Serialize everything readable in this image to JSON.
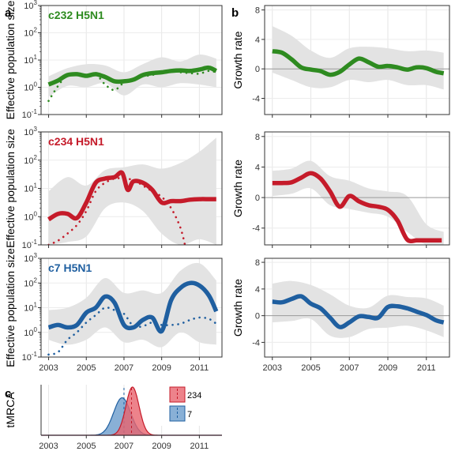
{
  "figure": {
    "panel_labels": [
      "a",
      "b",
      "c"
    ]
  },
  "chart_data": [
    {
      "panel": "a",
      "type": "line",
      "title": "c232 H5N1",
      "ylabel": "Effective population size",
      "yscale": "log",
      "ylim_log10": [
        -1,
        3
      ],
      "yticks_log10": [
        -1,
        0,
        1,
        2,
        3
      ],
      "xlim": [
        2002.6,
        2012.2
      ],
      "xticks": [
        2003,
        2005,
        2007,
        2009,
        2011
      ],
      "show_xtick_labels": false,
      "color": "#2e8b20",
      "series": [
        {
          "role": "median",
          "style": "solid",
          "x": [
            2003.0,
            2003.5,
            2004.0,
            2004.5,
            2005.0,
            2005.5,
            2006.0,
            2006.5,
            2007.0,
            2007.5,
            2008.0,
            2008.5,
            2009.0,
            2009.5,
            2010.0,
            2010.5,
            2011.0,
            2011.5,
            2011.9
          ],
          "y_log10": [
            0.1,
            0.25,
            0.45,
            0.48,
            0.42,
            0.48,
            0.38,
            0.22,
            0.22,
            0.28,
            0.45,
            0.52,
            0.55,
            0.6,
            0.62,
            0.6,
            0.65,
            0.72,
            0.6
          ]
        },
        {
          "role": "dotted",
          "style": "dotted",
          "x": [
            2003.0,
            2003.5,
            2004.0,
            2004.5,
            2005.0,
            2005.5,
            2006.0,
            2006.5,
            2007.0,
            2007.5,
            2008.0,
            2008.5,
            2009.0,
            2009.5,
            2010.0,
            2010.5,
            2011.0,
            2011.5,
            2011.9
          ],
          "y_log10": [
            -0.5,
            0.05,
            0.45,
            0.5,
            0.45,
            0.48,
            0.1,
            -0.1,
            0.18,
            0.3,
            0.4,
            0.45,
            0.55,
            0.6,
            0.55,
            0.52,
            0.5,
            0.6,
            0.55
          ]
        },
        {
          "role": "ci",
          "style": "band",
          "x": [
            2003.0,
            2004.0,
            2005.0,
            2006.0,
            2007.0,
            2008.0,
            2009.0,
            2010.0,
            2011.0,
            2011.9
          ],
          "lo_log10": [
            -0.35,
            0.05,
            0.0,
            0.15,
            -0.3,
            0.1,
            0.0,
            0.15,
            0.1,
            0.0
          ],
          "hi_log10": [
            0.4,
            0.7,
            0.85,
            0.8,
            0.55,
            0.85,
            1.1,
            0.95,
            1.2,
            1.05
          ]
        }
      ]
    },
    {
      "panel": "a",
      "type": "line",
      "title": "c234 H5N1",
      "ylabel": "Effective population size",
      "yscale": "log",
      "ylim_log10": [
        -1,
        3
      ],
      "yticks_log10": [
        -1,
        0,
        1,
        2,
        3
      ],
      "xlim": [
        2002.6,
        2012.2
      ],
      "xticks": [
        2003,
        2005,
        2007,
        2009,
        2011
      ],
      "show_xtick_labels": false,
      "color": "#c51b2a",
      "series": [
        {
          "role": "median",
          "style": "solid",
          "x": [
            2003.0,
            2003.5,
            2004.0,
            2004.5,
            2005.0,
            2005.5,
            2006.0,
            2006.5,
            2006.9,
            2007.2,
            2007.5,
            2008.0,
            2008.5,
            2009.0,
            2009.5,
            2010.0,
            2010.5,
            2011.0,
            2011.5,
            2011.9
          ],
          "y_log10": [
            -0.1,
            0.1,
            0.1,
            -0.05,
            0.5,
            1.2,
            1.35,
            1.4,
            1.55,
            0.95,
            1.25,
            1.2,
            0.95,
            0.5,
            0.55,
            0.55,
            0.6,
            0.62,
            0.62,
            0.62
          ]
        },
        {
          "role": "dotted",
          "style": "dotted",
          "x": [
            2003.0,
            2003.5,
            2004.0,
            2004.5,
            2005.0,
            2005.5,
            2006.0,
            2006.5,
            2006.9,
            2007.5,
            2008.0,
            2008.5,
            2009.0,
            2009.5,
            2010.0,
            2010.3
          ],
          "y_log10": [
            -1.0,
            -0.85,
            -0.6,
            -0.3,
            0.2,
            0.9,
            1.2,
            1.35,
            1.35,
            1.3,
            1.1,
            0.9,
            0.7,
            0.3,
            -0.4,
            -1.2
          ]
        },
        {
          "role": "ci",
          "style": "band",
          "x": [
            2003.0,
            2004.0,
            2005.0,
            2006.0,
            2007.0,
            2008.0,
            2009.0,
            2010.0,
            2011.0,
            2011.9
          ],
          "lo_log10": [
            -1.0,
            -0.9,
            -0.7,
            0.3,
            0.5,
            0.2,
            -0.6,
            -1.0,
            -0.8,
            -1.0
          ],
          "hi_log10": [
            0.9,
            1.4,
            1.1,
            1.65,
            1.75,
            1.85,
            1.7,
            1.9,
            2.3,
            2.8
          ]
        }
      ]
    },
    {
      "panel": "a",
      "type": "line",
      "title": "c7 H5N1",
      "ylabel": "Effective population size",
      "yscale": "log",
      "ylim_log10": [
        -1,
        3
      ],
      "yticks_log10": [
        -1,
        0,
        1,
        2,
        3
      ],
      "xlim": [
        2002.6,
        2012.2
      ],
      "xticks": [
        2003,
        2005,
        2007,
        2009,
        2011
      ],
      "show_xtick_labels": true,
      "color": "#1f5fa0",
      "series": [
        {
          "role": "median",
          "style": "solid",
          "x": [
            2003.0,
            2003.5,
            2004.0,
            2004.5,
            2005.0,
            2005.5,
            2006.0,
            2006.5,
            2007.0,
            2007.5,
            2008.0,
            2008.5,
            2009.0,
            2009.5,
            2010.0,
            2010.5,
            2011.0,
            2011.5,
            2011.9
          ],
          "y_log10": [
            0.2,
            0.3,
            0.2,
            0.3,
            0.8,
            1.0,
            1.45,
            1.2,
            0.3,
            0.2,
            0.5,
            0.6,
            0.05,
            1.3,
            1.8,
            2.0,
            1.9,
            1.5,
            0.85
          ]
        },
        {
          "role": "dotted",
          "style": "dotted",
          "x": [
            2003.0,
            2003.5,
            2004.0,
            2004.5,
            2005.0,
            2005.5,
            2006.0,
            2006.5,
            2007.0,
            2007.5,
            2008.0,
            2008.5,
            2009.0,
            2009.5,
            2010.0,
            2010.5,
            2011.0,
            2011.5,
            2011.9
          ],
          "y_log10": [
            -0.9,
            -0.8,
            -0.3,
            0.0,
            0.4,
            0.7,
            1.0,
            0.9,
            0.75,
            0.25,
            0.25,
            0.4,
            0.3,
            0.3,
            0.35,
            0.5,
            0.6,
            0.55,
            0.35
          ]
        },
        {
          "role": "ci",
          "style": "band",
          "x": [
            2003.0,
            2004.0,
            2005.0,
            2006.0,
            2007.0,
            2008.0,
            2009.0,
            2010.0,
            2011.0,
            2011.9
          ],
          "lo_log10": [
            -0.3,
            -0.5,
            -0.3,
            0.2,
            -0.4,
            -0.3,
            -0.6,
            0.0,
            -0.4,
            -0.5
          ],
          "hi_log10": [
            0.9,
            1.0,
            1.4,
            2.2,
            1.6,
            1.7,
            1.6,
            2.5,
            2.8,
            2.1
          ]
        }
      ]
    },
    {
      "panel": "b",
      "type": "line",
      "ylabel": "Growth rate",
      "ylim": [
        -6.2,
        8.6
      ],
      "yticks": [
        -4,
        0,
        4,
        8
      ],
      "yticks_labels": [
        "-4",
        "0",
        "4",
        "8"
      ],
      "xlim": [
        2002.6,
        2012.2
      ],
      "xticks": [
        2003,
        2005,
        2007,
        2009,
        2011
      ],
      "show_xtick_labels": false,
      "color": "#2e8b20",
      "series": [
        {
          "role": "median",
          "style": "solid",
          "x": [
            2003.0,
            2003.5,
            2004.0,
            2004.5,
            2005.0,
            2005.5,
            2006.0,
            2006.5,
            2007.0,
            2007.5,
            2008.0,
            2008.5,
            2009.0,
            2009.5,
            2010.0,
            2010.5,
            2011.0,
            2011.5,
            2011.9
          ],
          "y": [
            2.4,
            2.2,
            1.3,
            0.2,
            -0.1,
            -0.3,
            -0.8,
            -0.4,
            0.6,
            1.4,
            0.9,
            0.3,
            0.4,
            0.2,
            -0.1,
            0.2,
            0.1,
            -0.4,
            -0.6
          ]
        },
        {
          "role": "ci",
          "style": "band",
          "x": [
            2003.0,
            2004.0,
            2005.0,
            2006.0,
            2007.0,
            2008.0,
            2009.0,
            2010.0,
            2011.0,
            2011.9
          ],
          "lo": [
            -0.5,
            -1.5,
            -2.5,
            -2.5,
            -1.5,
            -1.8,
            -1.5,
            -2.2,
            -2.2,
            -2.8
          ],
          "hi": [
            5.8,
            4.5,
            2.5,
            1.5,
            2.8,
            3.0,
            2.8,
            2.4,
            2.5,
            2.2
          ]
        }
      ]
    },
    {
      "panel": "b",
      "type": "line",
      "ylabel": "Growth rate",
      "ylim": [
        -6.2,
        8.6
      ],
      "yticks": [
        -4,
        0,
        4,
        8
      ],
      "yticks_labels": [
        "-4",
        "0",
        "4",
        "8"
      ],
      "xlim": [
        2002.6,
        2012.2
      ],
      "xticks": [
        2003,
        2005,
        2007,
        2009,
        2011
      ],
      "show_xtick_labels": false,
      "color": "#c51b2a",
      "series": [
        {
          "role": "median",
          "style": "solid",
          "x": [
            2003.0,
            2003.5,
            2004.0,
            2004.5,
            2005.0,
            2005.5,
            2006.0,
            2006.5,
            2007.0,
            2007.5,
            2008.0,
            2008.5,
            2009.0,
            2009.5,
            2010.0,
            2010.5,
            2010.7,
            2011.0,
            2011.5,
            2011.8
          ],
          "y": [
            1.9,
            1.9,
            2.0,
            2.6,
            3.2,
            2.5,
            0.8,
            -1.2,
            0.2,
            -0.5,
            -1.0,
            -1.2,
            -1.6,
            -3.0,
            -5.5,
            -5.6,
            -5.6,
            -5.6,
            -5.6,
            -5.6
          ]
        },
        {
          "role": "ci",
          "style": "band",
          "x": [
            2003.0,
            2004.0,
            2005.0,
            2006.0,
            2007.0,
            2008.0,
            2009.0,
            2010.0,
            2011.0,
            2011.9
          ],
          "lo": [
            0.2,
            0.5,
            1.2,
            -1.0,
            -1.5,
            -2.0,
            -2.5,
            -4.5,
            -6.2,
            -6.2
          ],
          "hi": [
            3.5,
            3.8,
            4.8,
            2.8,
            2.2,
            1.2,
            0.8,
            0.2,
            -3.5,
            -4.5
          ]
        }
      ]
    },
    {
      "panel": "b",
      "type": "line",
      "ylabel": "Growth rate",
      "ylim": [
        -6.2,
        8.6
      ],
      "yticks": [
        -4,
        0,
        4,
        8
      ],
      "yticks_labels": [
        "-4",
        "0",
        "4",
        "8"
      ],
      "xlim": [
        2002.6,
        2012.2
      ],
      "xticks": [
        2003,
        2005,
        2007,
        2009,
        2011
      ],
      "show_xtick_labels": true,
      "color": "#1f5fa0",
      "series": [
        {
          "role": "median",
          "style": "solid",
          "x": [
            2003.0,
            2003.5,
            2004.0,
            2004.5,
            2005.0,
            2005.5,
            2006.0,
            2006.5,
            2007.0,
            2007.5,
            2008.0,
            2008.5,
            2009.0,
            2009.5,
            2010.0,
            2010.5,
            2011.0,
            2011.5,
            2011.9
          ],
          "y": [
            2.1,
            2.0,
            2.5,
            2.9,
            1.8,
            1.1,
            -0.3,
            -1.7,
            -1.0,
            -0.1,
            -0.2,
            -0.3,
            1.3,
            1.4,
            1.1,
            0.6,
            0.1,
            -0.7,
            -1.0
          ]
        },
        {
          "role": "ci",
          "style": "band",
          "x": [
            2003.0,
            2004.0,
            2005.0,
            2006.0,
            2007.0,
            2008.0,
            2009.0,
            2010.0,
            2011.0,
            2011.9
          ],
          "lo": [
            -1.0,
            -0.8,
            -0.5,
            -3.0,
            -3.2,
            -2.0,
            -1.8,
            -1.5,
            -2.2,
            -3.2
          ],
          "hi": [
            4.8,
            5.2,
            4.6,
            3.2,
            1.5,
            1.2,
            3.0,
            2.8,
            2.6,
            1.5
          ]
        }
      ]
    },
    {
      "panel": "c",
      "type": "area",
      "ylabel": "tMRCA",
      "xlim": [
        2002.6,
        2012.2
      ],
      "xticks": [
        2003,
        2005,
        2007,
        2009,
        2011
      ],
      "xtick_labels": [
        "2003",
        "2005",
        "2007",
        "2009",
        "2011"
      ],
      "series": [
        {
          "name": "234",
          "color": "#e8646e",
          "edge": "#c51b2a",
          "mean": 2007.45,
          "sd": 0.35,
          "dashed_line_x": 2007.4
        },
        {
          "name": "7",
          "color": "#6b9ccc",
          "edge": "#1f5fa0",
          "mean": 2006.9,
          "sd": 0.45,
          "dashed_line_x": 2007.0
        }
      ],
      "legend_position": "right"
    }
  ]
}
